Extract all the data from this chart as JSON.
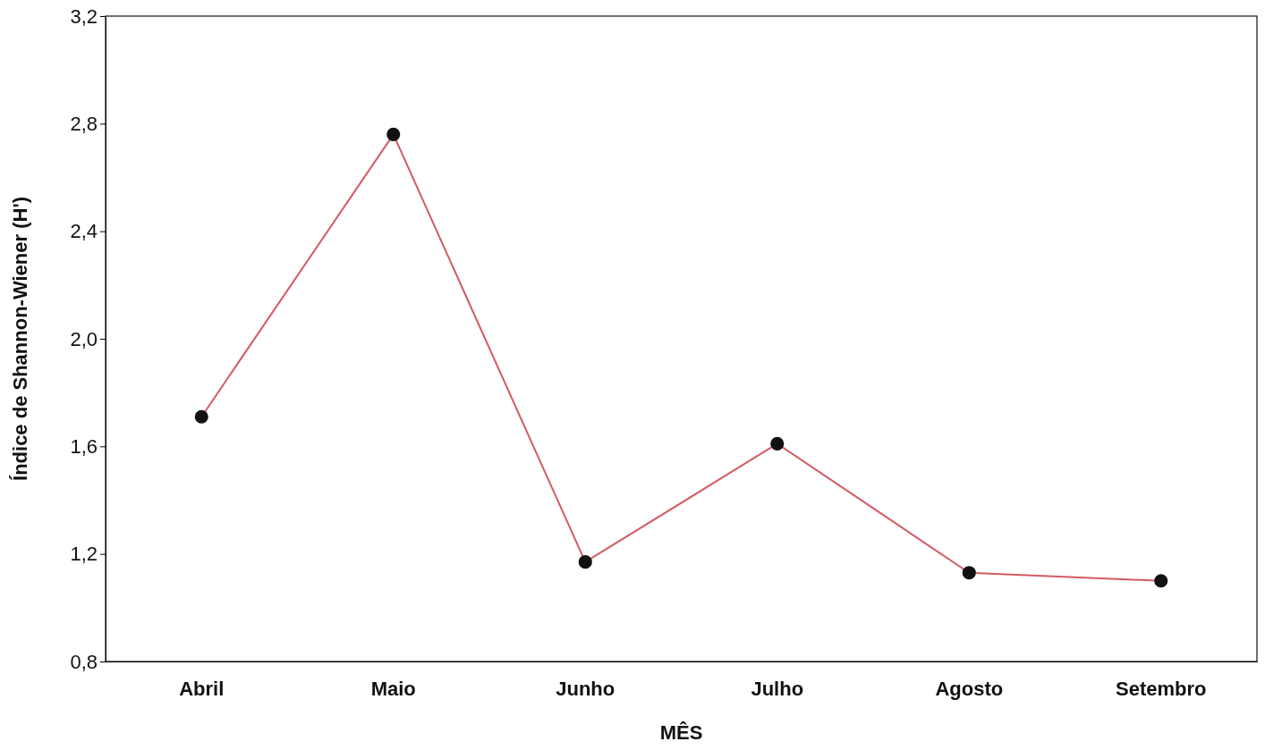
{
  "chart_data": {
    "type": "line",
    "xlabel": "MÊS",
    "ylabel": "Índice de Shannon-Wiener (H')",
    "categories": [
      "Abril",
      "Maio",
      "Junho",
      "Julho",
      "Agosto",
      "Setembro"
    ],
    "series": [
      {
        "color": "#d45a64",
        "values": [
          1.71,
          2.76,
          1.17,
          1.61,
          1.13,
          1.1
        ]
      }
    ],
    "ylim": [
      0.8,
      3.2
    ],
    "yticks": [
      {
        "value": 0.8,
        "label": "0,8"
      },
      {
        "value": 1.2,
        "label": "1,2"
      },
      {
        "value": 1.6,
        "label": "1,6"
      },
      {
        "value": 2.0,
        "label": "2,0"
      },
      {
        "value": 2.4,
        "label": "2,4"
      },
      {
        "value": 2.8,
        "label": "2,8"
      },
      {
        "value": 3.2,
        "label": "3,2"
      }
    ],
    "marker": "circle",
    "line_style": "solid",
    "grid": false
  }
}
